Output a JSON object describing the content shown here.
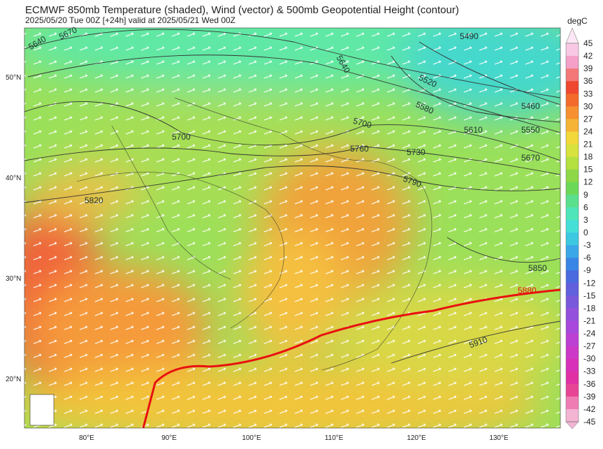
{
  "header": {
    "title": "ECMWF 850mb Temperature (shaded), Wind (vector) & 500mb Geopotential Height (contour)",
    "subtitle": "2025/05/20 Tue 00Z [+24h] valid at 2025/05/21 Wed 00Z"
  },
  "map": {
    "lat_labels": [
      "50°N",
      "40°N",
      "30°N",
      "20°N"
    ],
    "lon_labels": [
      "80°E",
      "90°E",
      "100°E",
      "110°E",
      "120°E",
      "130°E"
    ],
    "contour_labels": [
      "5640",
      "5670",
      "5490",
      "5640",
      "5520",
      "5460",
      "5580",
      "5550",
      "5610",
      "5700",
      "5700",
      "5760",
      "5730",
      "5670",
      "5790",
      "5820",
      "5850",
      "5880",
      "5910"
    ]
  },
  "colorbar": {
    "unit": "degC",
    "labels": [
      "45",
      "42",
      "39",
      "36",
      "33",
      "30",
      "27",
      "24",
      "21",
      "18",
      "15",
      "12",
      "9",
      "6",
      "3",
      "0",
      "-3",
      "-6",
      "-9",
      "-12",
      "-15",
      "-18",
      "-21",
      "-24",
      "-27",
      "-30",
      "-33",
      "-36",
      "-39",
      "-42",
      "-45"
    ]
  }
}
